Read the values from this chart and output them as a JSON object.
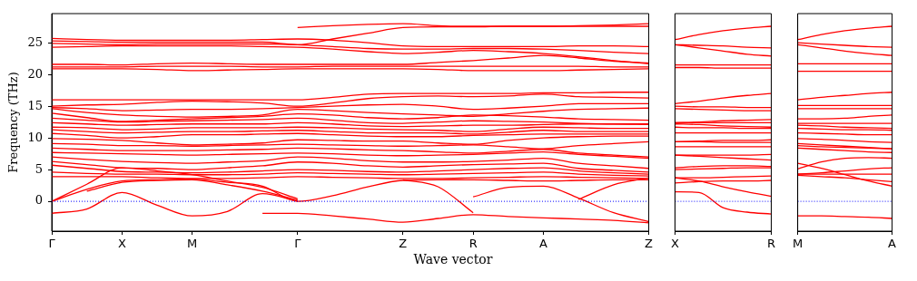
{
  "chart_data": [
    {
      "type": "line",
      "ylabel": "Frequency (THz)",
      "xlabel": "Wave vector",
      "legend": false,
      "grid": false,
      "marker": "none",
      "line_style": "solid",
      "categories": [
        "Γ",
        null,
        "X",
        null,
        "M",
        null,
        null,
        "Γ",
        null,
        null,
        "Z",
        null,
        "R",
        null,
        "A",
        null,
        null,
        "Z"
      ],
      "ylim": [
        -4.7,
        29.6
      ],
      "yticks": [
        0,
        5,
        10,
        15,
        20,
        25
      ],
      "ref_lines": [
        {
          "axis": "y",
          "value": 0,
          "color": "#0000ff",
          "line_style": "dotted"
        }
      ],
      "series": [
        {
          "color": "#ff0000",
          "values": [
            null,
            null,
            null,
            null,
            null,
            null,
            null,
            27.4,
            27.7,
            27.9,
            28.0,
            27.7,
            27.6,
            27.6,
            27.6,
            27.7,
            27.8,
            28.0
          ]
        },
        {
          "color": "#ff0000",
          "values": [
            25.7,
            25.5,
            25.4,
            25.4,
            25.4,
            25.4,
            25.5,
            25.6,
            25.4,
            25.0,
            24.5,
            24.4,
            24.4,
            24.4,
            24.4,
            24.5,
            24.5,
            24.4
          ]
        },
        {
          "color": "#ff0000",
          "values": [
            25.3,
            25.2,
            25.1,
            25.1,
            25.1,
            25.1,
            25.1,
            24.7,
            25.6,
            26.5,
            27.4,
            27.5,
            27.5,
            27.6,
            27.6,
            27.6,
            27.6,
            27.6
          ]
        },
        {
          "color": "#ff0000",
          "values": [
            24.9,
            24.8,
            24.7,
            24.8,
            24.8,
            24.8,
            24.8,
            24.7,
            24.4,
            24.1,
            24.0,
            24.0,
            24.1,
            24.1,
            24.0,
            23.8,
            23.5,
            23.3
          ]
        },
        {
          "color": "#ff0000",
          "values": [
            24.3,
            24.4,
            24.5,
            24.5,
            24.5,
            24.5,
            24.4,
            24.3,
            24.0,
            23.6,
            23.3,
            23.5,
            23.8,
            23.6,
            23.3,
            22.8,
            22.2,
            21.7
          ]
        },
        {
          "color": "#ff0000",
          "values": [
            21.6,
            21.6,
            21.5,
            21.7,
            21.8,
            21.7,
            21.6,
            21.6,
            21.6,
            21.6,
            21.6,
            21.9,
            22.2,
            22.6,
            23.0,
            22.6,
            22.1,
            21.8
          ]
        },
        {
          "color": "#ff0000",
          "values": [
            21.2,
            21.2,
            21.2,
            21.3,
            21.3,
            21.3,
            21.2,
            21.2,
            21.3,
            21.3,
            21.3,
            21.3,
            21.3,
            21.3,
            21.3,
            21.3,
            21.2,
            21.2
          ]
        },
        {
          "color": "#ff0000",
          "values": [
            20.9,
            20.9,
            20.9,
            20.8,
            20.6,
            20.7,
            20.8,
            20.9,
            20.9,
            20.9,
            20.9,
            20.8,
            20.6,
            20.6,
            20.6,
            20.7,
            20.8,
            20.9
          ]
        },
        {
          "color": "#ff0000",
          "values": [
            16.0,
            16.0,
            16.0,
            16.0,
            16.0,
            16.0,
            16.0,
            16.0,
            16.4,
            16.9,
            17.0,
            17.0,
            17.0,
            17.0,
            17.1,
            17.1,
            17.2,
            17.2
          ]
        },
        {
          "color": "#ff0000",
          "values": [
            15.0,
            15.2,
            15.3,
            15.6,
            15.8,
            15.7,
            15.5,
            15.0,
            15.5,
            16.2,
            16.5,
            16.6,
            16.5,
            16.6,
            16.9,
            16.5,
            16.4,
            16.3
          ]
        },
        {
          "color": "#ff0000",
          "values": [
            14.8,
            14.6,
            14.3,
            14.4,
            14.5,
            14.5,
            14.6,
            14.8,
            15.0,
            15.2,
            15.3,
            15.0,
            14.5,
            14.7,
            15.0,
            15.4,
            15.4,
            15.4
          ]
        },
        {
          "color": "#ff0000",
          "values": [
            14.6,
            14.0,
            13.6,
            13.4,
            13.3,
            13.4,
            13.6,
            14.5,
            14.3,
            14.0,
            13.8,
            13.6,
            13.4,
            13.8,
            14.2,
            14.5,
            14.6,
            14.7
          ]
        },
        {
          "color": "#ff0000",
          "values": [
            13.9,
            13.2,
            12.6,
            12.8,
            13.0,
            13.2,
            13.4,
            13.8,
            13.6,
            13.2,
            13.0,
            13.2,
            13.6,
            13.5,
            13.3,
            13.0,
            12.9,
            12.8
          ]
        },
        {
          "color": "#ff0000",
          "values": [
            13.1,
            12.8,
            12.5,
            12.6,
            12.7,
            12.8,
            12.9,
            13.1,
            12.8,
            12.4,
            12.3,
            12.5,
            12.7,
            12.6,
            12.5,
            12.3,
            12.2,
            12.2
          ]
        },
        {
          "color": "#ff0000",
          "values": [
            12.4,
            12.2,
            12.0,
            12.1,
            12.2,
            12.2,
            12.2,
            12.4,
            12.2,
            11.9,
            11.8,
            11.9,
            12.0,
            12.0,
            12.1,
            12.2,
            12.2,
            12.1
          ]
        },
        {
          "color": "#ff0000",
          "values": [
            11.7,
            11.6,
            11.3,
            11.4,
            11.6,
            11.6,
            11.6,
            11.7,
            11.6,
            11.4,
            11.3,
            11.2,
            11.0,
            11.4,
            11.7,
            11.6,
            11.5,
            11.5
          ]
        },
        {
          "color": "#ff0000",
          "values": [
            11.3,
            11.0,
            10.8,
            10.9,
            11.0,
            11.0,
            11.1,
            11.2,
            11.0,
            10.8,
            10.8,
            10.8,
            10.6,
            10.9,
            11.2,
            11.0,
            11.0,
            11.0
          ]
        },
        {
          "color": "#ff0000",
          "values": [
            10.7,
            10.4,
            10.0,
            10.2,
            10.5,
            10.5,
            10.6,
            10.7,
            10.5,
            10.3,
            10.2,
            10.2,
            10.4,
            10.5,
            10.6,
            10.6,
            10.6,
            10.6
          ]
        },
        {
          "color": "#ff0000",
          "values": [
            9.9,
            9.8,
            9.6,
            9.2,
            8.9,
            9.0,
            9.2,
            9.7,
            9.6,
            9.5,
            9.5,
            9.2,
            9.0,
            9.6,
            10.0,
            10.2,
            10.3,
            10.3
          ]
        },
        {
          "color": "#ff0000",
          "values": [
            9.1,
            9.0,
            8.8,
            8.8,
            8.7,
            8.8,
            8.9,
            9.0,
            8.9,
            8.8,
            8.7,
            8.8,
            8.9,
            8.6,
            8.3,
            8.8,
            9.1,
            9.4
          ]
        },
        {
          "color": "#ff0000",
          "values": [
            8.4,
            8.2,
            8.0,
            8.0,
            8.0,
            8.1,
            8.2,
            8.4,
            8.3,
            8.1,
            8.0,
            7.8,
            7.6,
            7.9,
            8.2,
            7.6,
            7.3,
            7.0
          ]
        },
        {
          "color": "#ff0000",
          "values": [
            7.7,
            7.6,
            7.5,
            7.4,
            7.3,
            7.4,
            7.5,
            7.6,
            7.5,
            7.3,
            7.2,
            7.3,
            7.4,
            7.6,
            7.8,
            7.4,
            7.1,
            6.8
          ]
        },
        {
          "color": "#ff0000",
          "values": [
            7.0,
            6.6,
            6.3,
            6.1,
            6.0,
            6.2,
            6.4,
            7.0,
            6.8,
            6.4,
            6.2,
            6.2,
            6.3,
            6.5,
            6.8,
            6.0,
            5.6,
            5.2
          ]
        },
        {
          "color": "#ff0000",
          "values": [
            6.3,
            5.8,
            5.3,
            5.2,
            5.0,
            5.3,
            5.6,
            6.2,
            6.0,
            5.6,
            5.4,
            5.6,
            5.8,
            5.9,
            6.0,
            5.2,
            4.9,
            4.6
          ]
        },
        {
          "color": "#ff0000",
          "values": [
            5.7,
            5.2,
            4.7,
            4.6,
            4.5,
            4.6,
            4.8,
            5.0,
            4.9,
            4.7,
            4.6,
            4.8,
            5.0,
            5.2,
            5.3,
            4.8,
            4.5,
            4.3
          ]
        },
        {
          "color": "#ff0000",
          "values": [
            4.6,
            4.4,
            4.3,
            4.3,
            4.2,
            4.2,
            4.3,
            4.5,
            4.4,
            4.3,
            4.2,
            4.3,
            4.4,
            4.5,
            4.6,
            4.3,
            4.1,
            4.0
          ]
        },
        {
          "color": "#ff0000",
          "values": [
            3.9,
            3.9,
            3.9,
            3.7,
            3.6,
            3.6,
            3.7,
            3.9,
            3.8,
            3.7,
            3.6,
            3.6,
            3.7,
            3.8,
            3.9,
            3.8,
            3.7,
            3.6
          ]
        },
        {
          "color": "#ff0000",
          "values": [
            0,
            1.9,
            3.2,
            3.4,
            3.5,
            3.0,
            2.4,
            0,
            0.9,
            2.3,
            3.3,
            3.4,
            3.4,
            3.3,
            3.2,
            3.3,
            3.4,
            3.4
          ]
        },
        {
          "color": "#ff0000",
          "values": [
            0,
            2.7,
            5.3,
            4.8,
            4.2,
            3.2,
            2.2,
            0.4,
            null,
            null,
            null,
            null,
            null,
            null,
            null,
            null,
            null,
            null
          ]
        },
        {
          "color": "#ff0000",
          "values": [
            null,
            1.6,
            3.0,
            3.3,
            3.4,
            2.6,
            1.6,
            0.2,
            null,
            null,
            null,
            null,
            null,
            null,
            null,
            null,
            null,
            null
          ]
        },
        {
          "color": "#ff0000",
          "values": [
            -1.9,
            -1.2,
            1.4,
            -0.6,
            -2.3,
            -1.6,
            1.2,
            0,
            null,
            null,
            null,
            null,
            null,
            null,
            null,
            null,
            null,
            null
          ]
        },
        {
          "color": "#ff0000",
          "values": [
            null,
            null,
            null,
            null,
            null,
            null,
            -1.9,
            -1.9,
            -2.3,
            -2.8,
            -3.3,
            -2.7,
            -2.1,
            -2.4,
            -2.6,
            -2.8,
            -3.0,
            -3.4
          ]
        },
        {
          "color": "#ff0000",
          "values": [
            null,
            null,
            null,
            null,
            null,
            null,
            null,
            null,
            null,
            null,
            3.4,
            2.3,
            -1.8,
            null,
            null,
            null,
            null,
            null
          ]
        },
        {
          "color": "#ff0000",
          "values": [
            null,
            null,
            null,
            null,
            null,
            null,
            null,
            null,
            null,
            null,
            null,
            null,
            0.7,
            2.2,
            2.4,
            0.5,
            -1.8,
            -3.2
          ]
        },
        {
          "color": "#ff0000",
          "values": [
            null,
            null,
            null,
            null,
            null,
            null,
            null,
            null,
            null,
            null,
            null,
            null,
            null,
            null,
            null,
            0.3,
            2.6,
            3.7
          ]
        }
      ]
    },
    {
      "type": "line",
      "legend": false,
      "grid": false,
      "marker": "none",
      "line_style": "solid",
      "tick_labels": "x",
      "categories": [
        "X",
        null,
        null,
        null,
        "R"
      ],
      "ylim": [
        -4.7,
        29.6
      ],
      "yticks": [
        0,
        5,
        10,
        15,
        20,
        25
      ],
      "ref_lines": [
        {
          "axis": "y",
          "value": 0,
          "color": "#0000ff",
          "line_style": "dotted"
        }
      ],
      "series": [
        {
          "color": "#ff0000",
          "values": [
            25.5,
            26.3,
            26.9,
            27.3,
            27.6
          ]
        },
        {
          "color": "#ff0000",
          "values": [
            24.7,
            24.6,
            24.5,
            24.3,
            24.2
          ]
        },
        {
          "color": "#ff0000",
          "values": [
            24.7,
            24.2,
            23.7,
            23.2,
            22.9
          ]
        },
        {
          "color": "#ff0000",
          "values": [
            21.5,
            21.5,
            21.5,
            21.5,
            21.5
          ]
        },
        {
          "color": "#ff0000",
          "values": [
            21.1,
            21.1,
            21.0,
            21.0,
            21.0
          ]
        },
        {
          "color": "#ff0000",
          "values": [
            15.4,
            15.8,
            16.3,
            16.7,
            17.0
          ]
        },
        {
          "color": "#ff0000",
          "values": [
            15.0,
            14.9,
            14.9,
            14.8,
            14.8
          ]
        },
        {
          "color": "#ff0000",
          "values": [
            14.6,
            14.5,
            14.4,
            14.3,
            14.3
          ]
        },
        {
          "color": "#ff0000",
          "values": [
            12.4,
            12.5,
            12.7,
            12.8,
            12.9
          ]
        },
        {
          "color": "#ff0000",
          "values": [
            12.4,
            12.4,
            12.4,
            12.4,
            12.4
          ]
        },
        {
          "color": "#ff0000",
          "values": [
            12.2,
            12.1,
            11.9,
            11.8,
            11.7
          ]
        },
        {
          "color": "#ff0000",
          "values": [
            11.7,
            11.6,
            11.6,
            11.5,
            11.5
          ]
        },
        {
          "color": "#ff0000",
          "values": [
            10.8,
            10.8,
            10.8,
            10.8,
            10.8
          ]
        },
        {
          "color": "#ff0000",
          "values": [
            9.4,
            9.5,
            9.6,
            9.6,
            9.7
          ]
        },
        {
          "color": "#ff0000",
          "values": [
            9.4,
            9.4,
            9.3,
            9.3,
            9.3
          ]
        },
        {
          "color": "#ff0000",
          "values": [
            8.6,
            8.6,
            8.6,
            8.6,
            8.6
          ]
        },
        {
          "color": "#ff0000",
          "values": [
            7.3,
            7.3,
            7.3,
            7.3,
            7.4
          ]
        },
        {
          "color": "#ff0000",
          "values": [
            7.3,
            7.1,
            6.9,
            6.7,
            6.5
          ]
        },
        {
          "color": "#ff0000",
          "values": [
            5.3,
            5.5,
            5.6,
            5.6,
            5.5
          ]
        },
        {
          "color": "#ff0000",
          "values": [
            5.0,
            5.1,
            5.2,
            5.3,
            5.3
          ]
        },
        {
          "color": "#ff0000",
          "values": [
            3.7,
            3.7,
            3.8,
            3.9,
            4.0
          ]
        },
        {
          "color": "#ff0000",
          "values": [
            3.7,
            3.2,
            2.3,
            1.5,
            0.8
          ]
        },
        {
          "color": "#ff0000",
          "values": [
            2.9,
            3.1,
            3.2,
            3.2,
            3.3
          ]
        },
        {
          "color": "#ff0000",
          "values": [
            1.5,
            1.4,
            -1.0,
            -1.7,
            -2.0
          ]
        }
      ]
    },
    {
      "type": "line",
      "legend": false,
      "grid": false,
      "marker": "none",
      "line_style": "solid",
      "tick_labels": "x",
      "categories": [
        "M",
        null,
        null,
        null,
        "A"
      ],
      "ylim": [
        -4.7,
        29.6
      ],
      "yticks": [
        0,
        5,
        10,
        15,
        20,
        25
      ],
      "ref_lines": [
        {
          "axis": "y",
          "value": 0,
          "color": "#0000ff",
          "line_style": "dotted"
        }
      ],
      "series": [
        {
          "color": "#ff0000",
          "values": [
            25.5,
            26.3,
            26.9,
            27.3,
            27.6
          ]
        },
        {
          "color": "#ff0000",
          "values": [
            25.0,
            24.8,
            24.6,
            24.4,
            24.3
          ]
        },
        {
          "color": "#ff0000",
          "values": [
            24.7,
            24.2,
            23.7,
            23.3,
            23.0
          ]
        },
        {
          "color": "#ff0000",
          "values": [
            21.7,
            21.7,
            21.7,
            21.7,
            21.7
          ]
        },
        {
          "color": "#ff0000",
          "values": [
            20.5,
            20.5,
            20.5,
            20.5,
            20.5
          ]
        },
        {
          "color": "#ff0000",
          "values": [
            16.0,
            16.4,
            16.7,
            17.0,
            17.2
          ]
        },
        {
          "color": "#ff0000",
          "values": [
            15.1,
            15.1,
            15.1,
            15.1,
            15.1
          ]
        },
        {
          "color": "#ff0000",
          "values": [
            14.6,
            14.6,
            14.6,
            14.6,
            14.6
          ]
        },
        {
          "color": "#ff0000",
          "values": [
            13.0,
            13.0,
            13.1,
            13.4,
            13.6
          ]
        },
        {
          "color": "#ff0000",
          "values": [
            12.3,
            12.3,
            12.3,
            12.3,
            12.3
          ]
        },
        {
          "color": "#ff0000",
          "values": [
            12.0,
            11.9,
            11.7,
            11.6,
            11.5
          ]
        },
        {
          "color": "#ff0000",
          "values": [
            11.5,
            11.4,
            11.3,
            11.3,
            11.2
          ]
        },
        {
          "color": "#ff0000",
          "values": [
            10.8,
            10.7,
            10.6,
            10.5,
            10.5
          ]
        },
        {
          "color": "#ff0000",
          "values": [
            9.9,
            9.8,
            9.6,
            9.4,
            9.3
          ]
        },
        {
          "color": "#ff0000",
          "values": [
            9.1,
            8.9,
            8.7,
            8.5,
            8.3
          ]
        },
        {
          "color": "#ff0000",
          "values": [
            8.8,
            8.6,
            8.5,
            8.4,
            8.3
          ]
        },
        {
          "color": "#ff0000",
          "values": [
            8.4,
            8.2,
            8.0,
            7.8,
            7.7
          ]
        },
        {
          "color": "#ff0000",
          "values": [
            6.0,
            5.2,
            4.2,
            3.2,
            2.4
          ]
        },
        {
          "color": "#ff0000",
          "values": [
            5.1,
            6.2,
            6.8,
            6.9,
            6.8
          ]
        },
        {
          "color": "#ff0000",
          "values": [
            4.3,
            4.5,
            4.8,
            5.1,
            5.3
          ]
        },
        {
          "color": "#ff0000",
          "values": [
            4.1,
            3.9,
            3.7,
            3.4,
            3.1
          ]
        },
        {
          "color": "#ff0000",
          "values": [
            4.3,
            4.3,
            4.3,
            4.3,
            4.3
          ]
        },
        {
          "color": "#ff0000",
          "values": [
            -2.3,
            -2.3,
            -2.4,
            -2.5,
            -2.7
          ]
        }
      ]
    }
  ]
}
